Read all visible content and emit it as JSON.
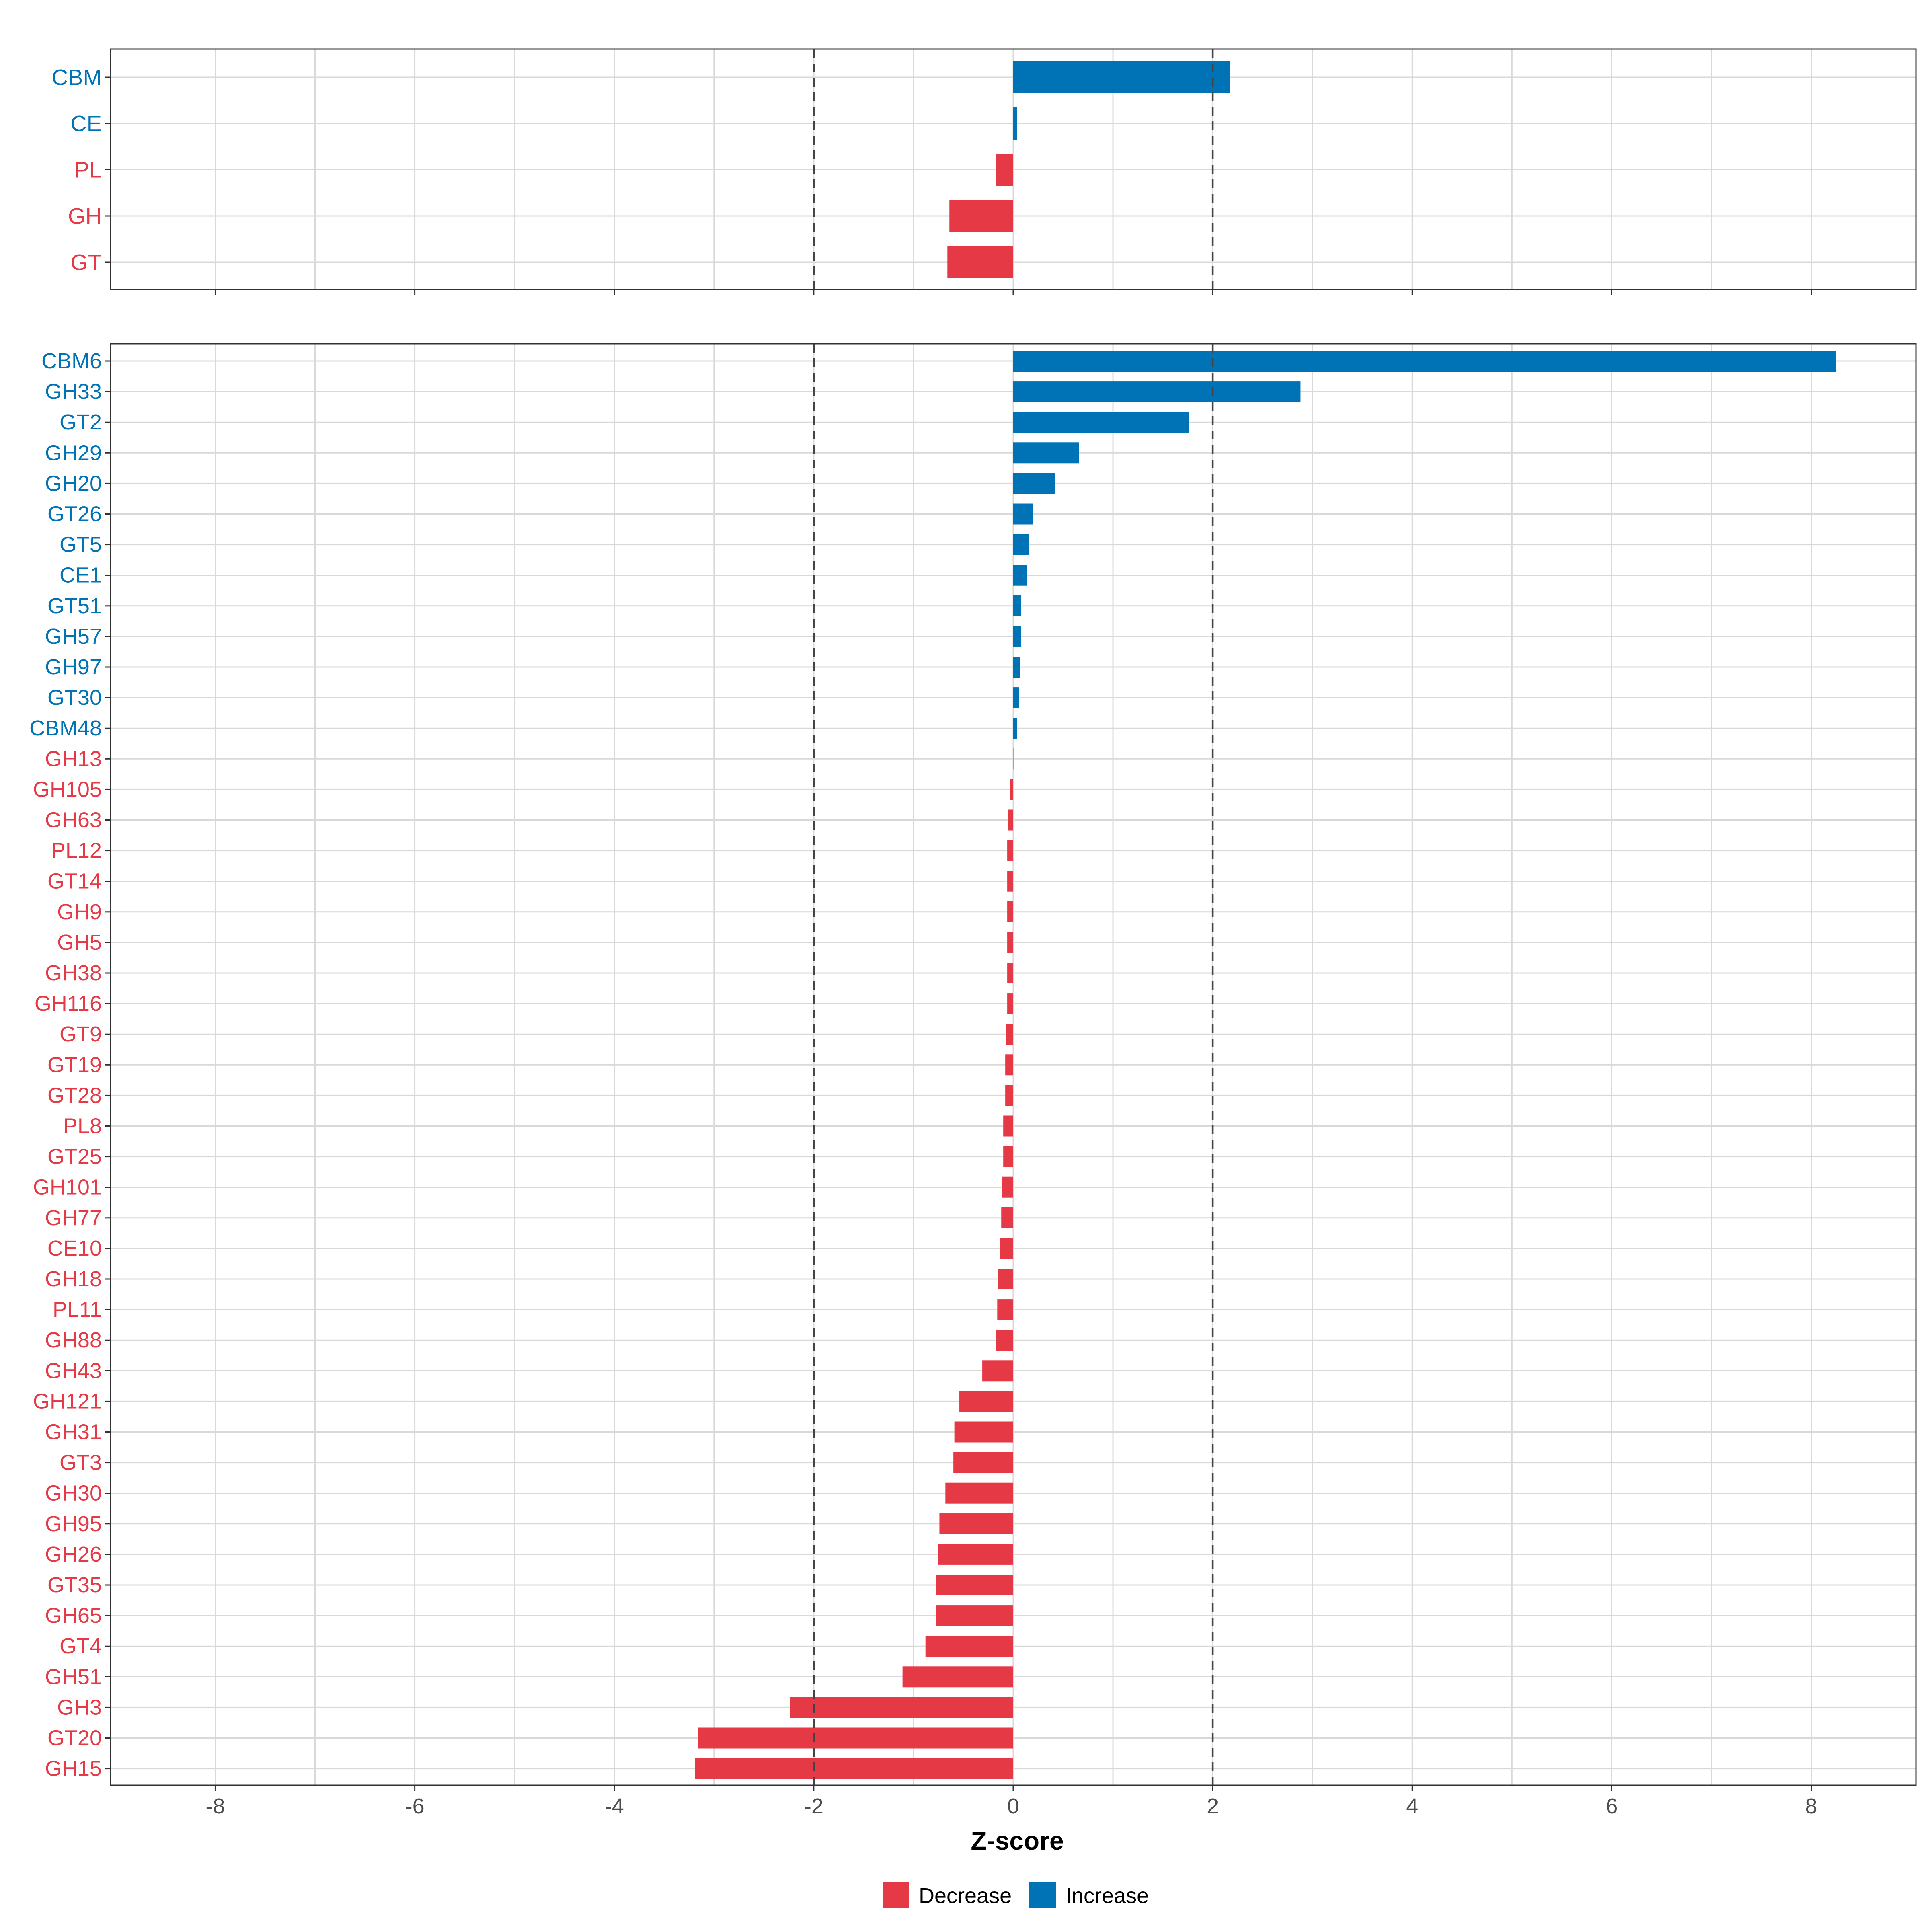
{
  "chart_data": [
    {
      "type": "bar",
      "orientation": "horizontal",
      "panel": "top",
      "categories": [
        "CBM",
        "CE",
        "PL",
        "GH",
        "GT"
      ],
      "values": [
        2.17,
        0.04,
        -0.17,
        -0.64,
        -0.66
      ],
      "groups": [
        "Increase",
        "Increase",
        "Decrease",
        "Decrease",
        "Decrease"
      ],
      "xlim": [
        -9.05,
        9.05
      ],
      "reference_lines": [
        -2,
        2
      ],
      "grid": true
    },
    {
      "type": "bar",
      "orientation": "horizontal",
      "panel": "bottom",
      "categories": [
        "CBM6",
        "GH33",
        "GT2",
        "GH29",
        "GH20",
        "GT26",
        "GT5",
        "CE1",
        "GT51",
        "GH57",
        "GH97",
        "GT30",
        "CBM48",
        "GH13",
        "GH105",
        "GH63",
        "PL12",
        "GT14",
        "GH9",
        "GH5",
        "GH38",
        "GH116",
        "GT9",
        "GT19",
        "GT28",
        "PL8",
        "GT25",
        "GH101",
        "GH77",
        "CE10",
        "GH18",
        "PL11",
        "GH88",
        "GH43",
        "GH121",
        "GH31",
        "GT3",
        "GH30",
        "GH95",
        "GH26",
        "GT35",
        "GH65",
        "GT4",
        "GH51",
        "GH3",
        "GT20",
        "GH15"
      ],
      "values": [
        8.25,
        2.88,
        1.76,
        0.66,
        0.42,
        0.2,
        0.16,
        0.14,
        0.08,
        0.08,
        0.07,
        0.06,
        0.04,
        0.0,
        -0.03,
        -0.05,
        -0.06,
        -0.06,
        -0.06,
        -0.06,
        -0.06,
        -0.06,
        -0.07,
        -0.08,
        -0.08,
        -0.1,
        -0.1,
        -0.11,
        -0.12,
        -0.13,
        -0.15,
        -0.16,
        -0.17,
        -0.31,
        -0.54,
        -0.59,
        -0.6,
        -0.68,
        -0.74,
        -0.75,
        -0.77,
        -0.77,
        -0.88,
        -1.11,
        -2.24,
        -3.16,
        -3.19
      ],
      "groups": [
        "Increase",
        "Increase",
        "Increase",
        "Increase",
        "Increase",
        "Increase",
        "Increase",
        "Increase",
        "Increase",
        "Increase",
        "Increase",
        "Increase",
        "Increase",
        "Decrease",
        "Decrease",
        "Decrease",
        "Decrease",
        "Decrease",
        "Decrease",
        "Decrease",
        "Decrease",
        "Decrease",
        "Decrease",
        "Decrease",
        "Decrease",
        "Decrease",
        "Decrease",
        "Decrease",
        "Decrease",
        "Decrease",
        "Decrease",
        "Decrease",
        "Decrease",
        "Decrease",
        "Decrease",
        "Decrease",
        "Decrease",
        "Decrease",
        "Decrease",
        "Decrease",
        "Decrease",
        "Decrease",
        "Decrease",
        "Decrease",
        "Decrease",
        "Decrease",
        "Decrease"
      ],
      "xlim": [
        -9.05,
        9.05
      ],
      "reference_lines": [
        -2,
        2
      ],
      "grid": true
    }
  ],
  "axis": {
    "xlabel": "Z-score",
    "ticks": [
      -8,
      -6,
      -4,
      -2,
      0,
      2,
      4,
      6,
      8
    ],
    "tick_labels": [
      "-8",
      "-6",
      "-4",
      "-2",
      "0",
      "2",
      "4",
      "6",
      "8"
    ]
  },
  "legend": {
    "placement": "bottom-center",
    "items": [
      {
        "name": "Decrease",
        "color": "#E63946"
      },
      {
        "name": "Increase",
        "color": "#0073B7"
      }
    ]
  },
  "colors": {
    "Decrease": "#E63946",
    "Increase": "#0073B7",
    "grid": "#D9D9D9",
    "refline": "#444444",
    "border": "#333333",
    "tick_text": "#4D4D4D"
  }
}
